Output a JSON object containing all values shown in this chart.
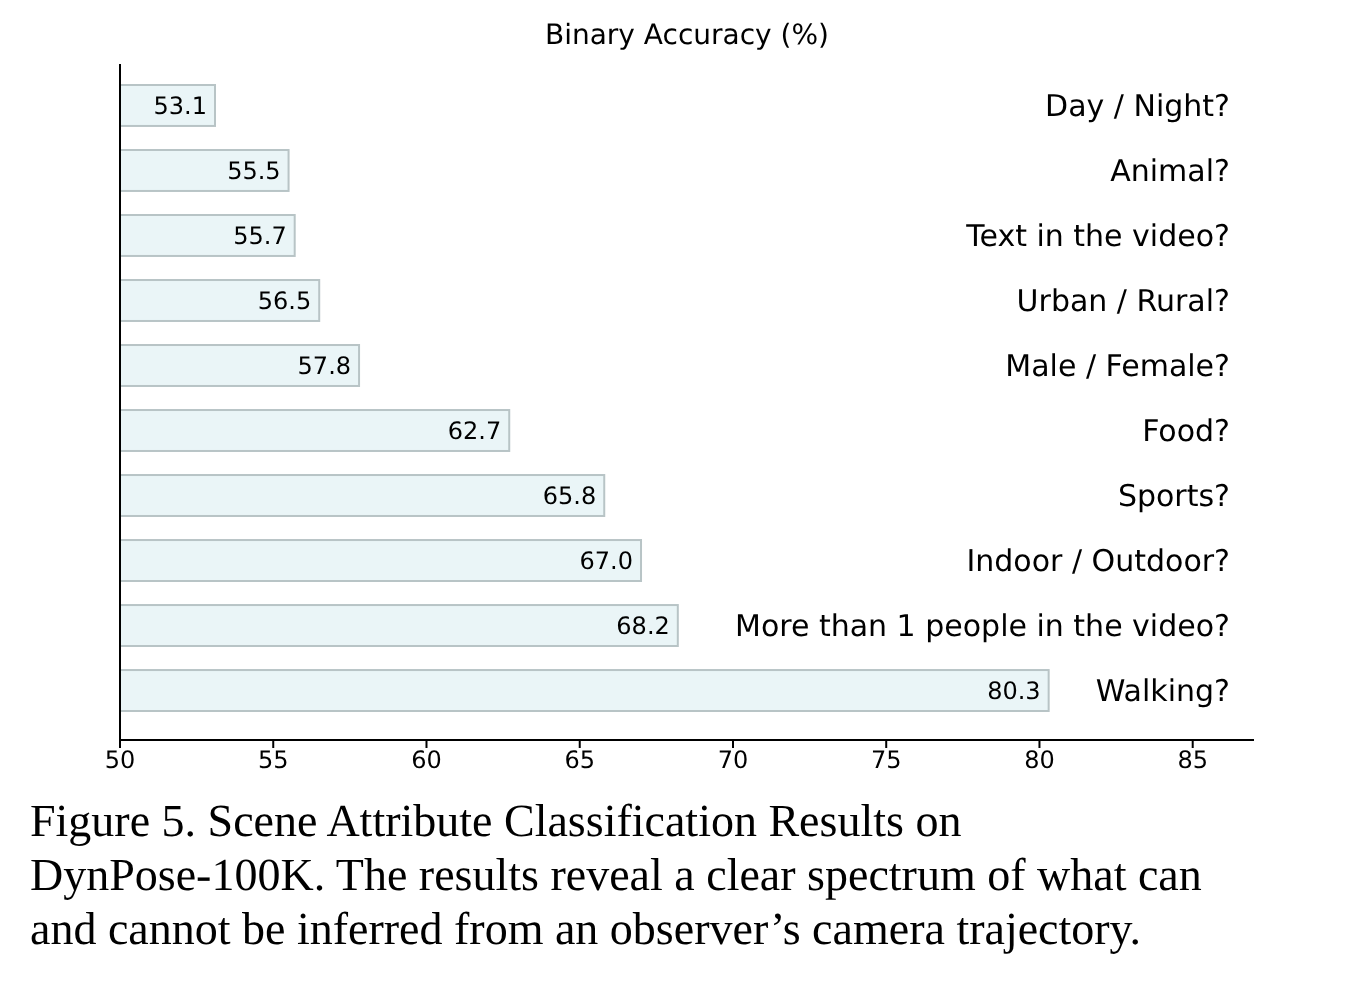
{
  "chart_data": {
    "type": "bar",
    "orientation": "horizontal",
    "title": "Binary Accuracy (%)",
    "categories": [
      "Day / Night?",
      "Animal?",
      "Text in the video?",
      "Urban / Rural?",
      "Male / Female?",
      "Food?",
      "Sports?",
      "Indoor / Outdoor?",
      "More than 1 people in the video?",
      "Walking?"
    ],
    "values": [
      53.1,
      55.5,
      55.7,
      56.5,
      57.8,
      62.7,
      65.8,
      67.0,
      68.2,
      80.3
    ],
    "value_labels": [
      "53.1",
      "55.5",
      "55.7",
      "56.5",
      "57.8",
      "62.7",
      "65.8",
      "67.0",
      "68.2",
      "80.3"
    ],
    "color": "#eaf5f7",
    "xlim": [
      50,
      87
    ],
    "xticks": [
      50,
      55,
      60,
      65,
      70,
      75,
      80,
      85
    ],
    "annotations": [
      "Figure 5.  Scene Attribute Classification Results on DynPose-100K. The results reveal a clear spectrum of what can and cannot be inferred from an observer’s camera trajectory."
    ]
  }
}
